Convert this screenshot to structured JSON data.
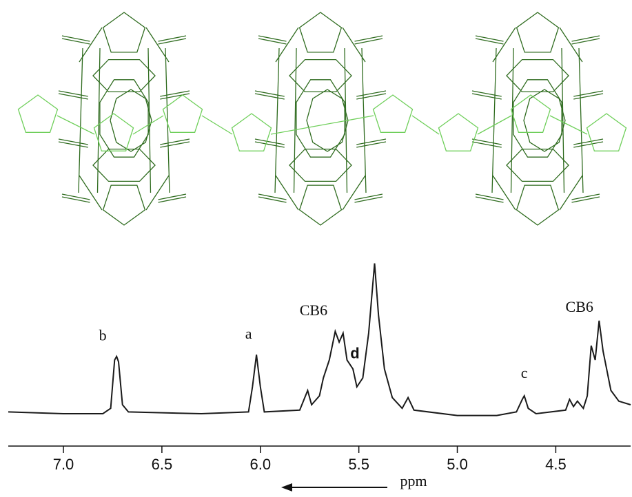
{
  "chart_data": {
    "type": "line",
    "xlabel": "ppm",
    "xlim": [
      7.28,
      4.12
    ],
    "xticks": [
      {
        "value": 7.0,
        "label": "7.0"
      },
      6.5,
      {
        "value": 6.0,
        "label": "6.0"
      },
      5.5,
      {
        "value": 5.0,
        "label": "5.0"
      },
      4.5
    ],
    "ylim": [
      0,
      100
    ],
    "color": "#1a1a1a",
    "x": [
      7.28,
      7.0,
      6.8,
      6.76,
      6.74,
      6.73,
      6.72,
      6.7,
      6.67,
      6.3,
      6.06,
      6.04,
      6.02,
      6.0,
      5.98,
      5.8,
      5.76,
      5.74,
      5.7,
      5.68,
      5.65,
      5.62,
      5.6,
      5.58,
      5.56,
      5.53,
      5.51,
      5.48,
      5.45,
      5.42,
      5.4,
      5.37,
      5.33,
      5.28,
      5.25,
      5.22,
      5.0,
      4.8,
      4.7,
      4.67,
      4.66,
      4.64,
      4.6,
      4.45,
      4.43,
      4.41,
      4.39,
      4.36,
      4.34,
      4.32,
      4.3,
      4.28,
      4.26,
      4.22,
      4.18,
      4.12
    ],
    "values": [
      16,
      15,
      15,
      18,
      45,
      47,
      44,
      20,
      16,
      15,
      16,
      30,
      48,
      30,
      16,
      17,
      28,
      20,
      25,
      35,
      45,
      61,
      55,
      60,
      45,
      40,
      30,
      35,
      60,
      99,
      70,
      40,
      24,
      18,
      24,
      17,
      14,
      14,
      16,
      23,
      25,
      18,
      15,
      17,
      23,
      19,
      22,
      18,
      25,
      53,
      45,
      67,
      50,
      28,
      22,
      20
    ],
    "annotations": [
      {
        "text": "b",
        "x": 6.8,
        "y": 56
      },
      {
        "text": "a",
        "x": 6.06,
        "y": 57
      },
      {
        "text": "CB6",
        "x": 5.73,
        "y": 70
      },
      {
        "text": "d",
        "x": 5.52,
        "y": 46,
        "bold": true
      },
      {
        "text": "c",
        "x": 4.66,
        "y": 35
      },
      {
        "text": "CB6",
        "x": 4.38,
        "y": 72
      }
    ]
  }
}
